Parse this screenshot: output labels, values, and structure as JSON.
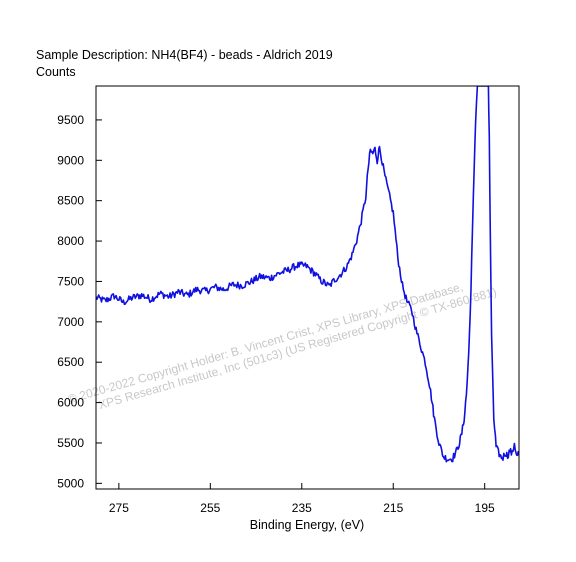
{
  "chart_data": {
    "type": "line",
    "title": "Sample Description:  NH4(BF4) - beads - Aldrich 2019",
    "ylabel": "Counts",
    "xlabel": "Binding Energy, (eV)",
    "x_reversed": true,
    "xlim": [
      280,
      187.5
    ],
    "ylim": [
      4930,
      9920
    ],
    "x_ticks": [
      275,
      255,
      235,
      215,
      195
    ],
    "y_ticks": [
      5000,
      5500,
      6000,
      6500,
      7000,
      7500,
      8000,
      8500,
      9000,
      9500
    ],
    "grid": false,
    "line_color": "#1010e0",
    "watermark": [
      "© 2020-2022 Copyright Holder: B. Vincent Crist, XPS Library, XPS Database,",
      "XPS Research Institute, Inc (501c3)  (US Registered Copyright © TX-860-881)"
    ],
    "series": [
      {
        "x": [
          280,
          278,
          276,
          274,
          272,
          270,
          268,
          266,
          264,
          262,
          260,
          258,
          256,
          254,
          252,
          250,
          248,
          246,
          244,
          242,
          240,
          238,
          236,
          234,
          232,
          231,
          230,
          229,
          228,
          227,
          226,
          225,
          224,
          223,
          222,
          221,
          220.5,
          220,
          219.5,
          219,
          218.5,
          218,
          217,
          216,
          215,
          214,
          213,
          212,
          211,
          210,
          209,
          208,
          207.5,
          207,
          206.5,
          206,
          205,
          204,
          203,
          202,
          201,
          200.5,
          200,
          199.5,
          199,
          198.5,
          198,
          197.5,
          197,
          196.6,
          196.4,
          196.2,
          195,
          194.2,
          194,
          193.8,
          193.5,
          193,
          192.5,
          192,
          191.5,
          191,
          190.5,
          190,
          189.5,
          189,
          188.5,
          188,
          187.5
        ],
        "y": [
          7300,
          7260,
          7320,
          7240,
          7300,
          7330,
          7280,
          7350,
          7310,
          7370,
          7330,
          7400,
          7380,
          7430,
          7400,
          7460,
          7450,
          7500,
          7560,
          7540,
          7600,
          7640,
          7700,
          7690,
          7590,
          7520,
          7480,
          7440,
          7510,
          7560,
          7620,
          7700,
          7830,
          8010,
          8250,
          8550,
          8900,
          9120,
          9080,
          9140,
          9000,
          9170,
          8850,
          8600,
          8350,
          7800,
          7450,
          7250,
          7150,
          6900,
          6700,
          6500,
          6350,
          6200,
          6000,
          5800,
          5500,
          5330,
          5300,
          5310,
          5420,
          5510,
          5620,
          5800,
          6100,
          6600,
          7400,
          8500,
          9500,
          9920,
          9920,
          9920,
          9920,
          9920,
          9300,
          8200,
          6800,
          5800,
          5450,
          5380,
          5330,
          5320,
          5380,
          5340,
          5410,
          5360,
          5500,
          5330,
          5390
        ]
      }
    ]
  }
}
